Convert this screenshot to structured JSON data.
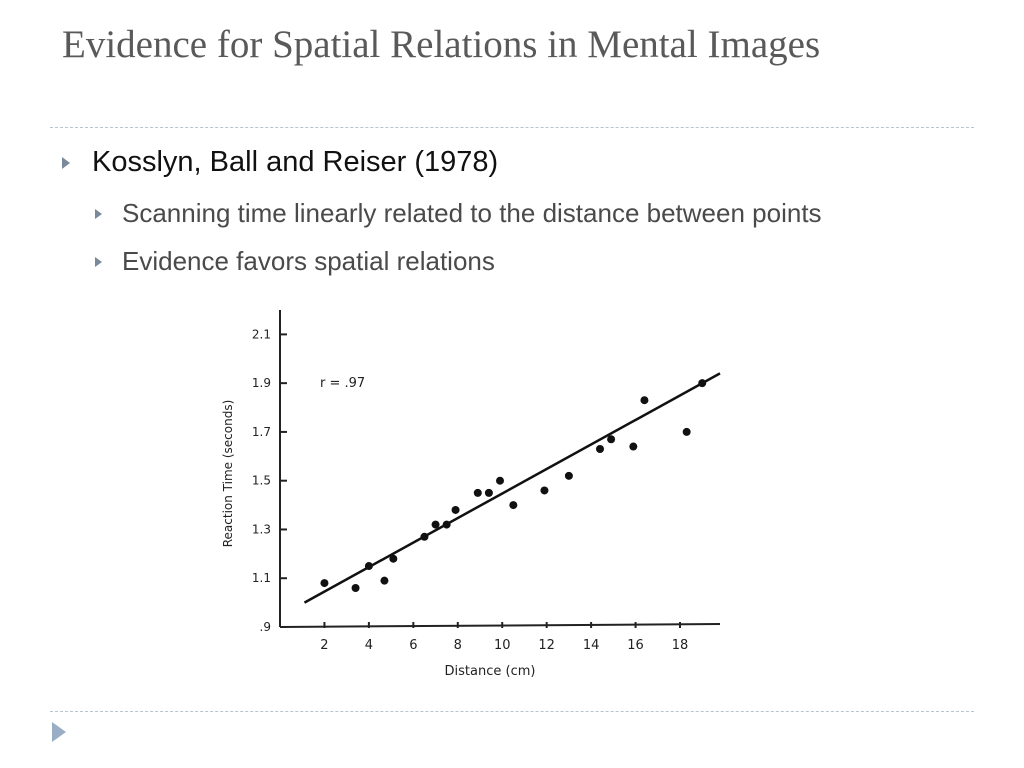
{
  "slide": {
    "title": "Evidence for Spatial Relations in Mental Images",
    "bullets": [
      {
        "level": 1,
        "text": "Kosslyn, Ball and Reiser (1978)"
      },
      {
        "level": 2,
        "text": "Scanning time linearly related to the distance between points"
      },
      {
        "level": 2,
        "text": "Evidence favors spatial relations"
      }
    ]
  },
  "colors": {
    "title": "#595959",
    "bullet_arrow": "#7a8a9a",
    "rule": "#b7c4cf",
    "nav_arrow": "#9aaec5"
  },
  "icons": {
    "bullet": "triangle-right-icon",
    "nav": "play-arrow-icon"
  },
  "chart_data": {
    "type": "scatter",
    "title": "",
    "xlabel": "Distance (cm)",
    "ylabel": "Reaction Time (seconds)",
    "annotation": "r = .97",
    "x_ticks": [
      2,
      4,
      6,
      8,
      10,
      12,
      14,
      16,
      18
    ],
    "y_ticks": [
      ".9",
      "1.1",
      "1.3",
      "1.5",
      "1.7",
      "1.9",
      "2.1"
    ],
    "y_tick_values": [
      0.9,
      1.1,
      1.3,
      1.5,
      1.7,
      1.9,
      2.1
    ],
    "xlim": [
      0,
      19.8
    ],
    "ylim": [
      0.9,
      2.2
    ],
    "grid": false,
    "points": [
      {
        "x": 2.0,
        "y": 1.08
      },
      {
        "x": 3.4,
        "y": 1.06
      },
      {
        "x": 4.0,
        "y": 1.15
      },
      {
        "x": 4.7,
        "y": 1.09
      },
      {
        "x": 5.1,
        "y": 1.18
      },
      {
        "x": 6.5,
        "y": 1.27
      },
      {
        "x": 7.0,
        "y": 1.32
      },
      {
        "x": 7.5,
        "y": 1.32
      },
      {
        "x": 7.9,
        "y": 1.38
      },
      {
        "x": 8.9,
        "y": 1.45
      },
      {
        "x": 9.4,
        "y": 1.45
      },
      {
        "x": 9.9,
        "y": 1.5
      },
      {
        "x": 10.5,
        "y": 1.4
      },
      {
        "x": 11.9,
        "y": 1.46
      },
      {
        "x": 13.0,
        "y": 1.52
      },
      {
        "x": 14.4,
        "y": 1.63
      },
      {
        "x": 14.9,
        "y": 1.67
      },
      {
        "x": 15.9,
        "y": 1.64
      },
      {
        "x": 16.4,
        "y": 1.83
      },
      {
        "x": 18.3,
        "y": 1.7
      },
      {
        "x": 19.0,
        "y": 1.9
      }
    ],
    "fit_line": {
      "x": [
        1.1,
        19.8
      ],
      "y": [
        1.0,
        1.94
      ]
    }
  }
}
